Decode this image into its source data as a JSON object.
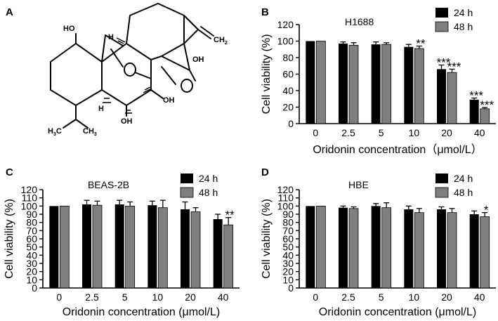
{
  "panels": {
    "A": {
      "letter": "A"
    }
  },
  "structure": {
    "labels": {
      "oh1": "HO",
      "h1": "H",
      "h2": "H",
      "o_ring": "O",
      "oh2": "OH",
      "o_ketone": "O",
      "oh3": "OH",
      "oh4": "OH",
      "ch2": "CH",
      "ch2_sub": "2",
      "h3c": "H",
      "h3c_sub": "3",
      "h3c_c": "C",
      "ch3": "CH",
      "ch3_sub": "3"
    }
  },
  "colors": {
    "series_24h": "#000000",
    "series_48h": "#7f7f7f"
  },
  "chart_data": [
    {
      "id": "B",
      "letter": "B",
      "type": "bar",
      "title": "H1688",
      "xlabel": "Oridonin concentration（μmol/L）",
      "ylabel": "Cell viability (%)",
      "categories": [
        "0",
        "2.5",
        "5",
        "10",
        "20",
        "40"
      ],
      "ylim": [
        0,
        120
      ],
      "yticks": [
        0,
        20,
        40,
        60,
        80,
        100,
        120
      ],
      "legend_position": "top-right",
      "series": [
        {
          "name": "24 h",
          "values": [
            100,
            97,
            96,
            93,
            66,
            29
          ],
          "errors": [
            0,
            2,
            3,
            3,
            5,
            2
          ],
          "stars": [
            "",
            "",
            "",
            "",
            "***",
            "***"
          ]
        },
        {
          "name": "48 h",
          "values": [
            100,
            95,
            96,
            91,
            62,
            18
          ],
          "errors": [
            0,
            3,
            2,
            3,
            4,
            1.5
          ],
          "stars": [
            "",
            "",
            "",
            "**",
            "***",
            "***"
          ]
        }
      ]
    },
    {
      "id": "C",
      "letter": "C",
      "type": "bar",
      "title": "BEAS-2B",
      "xlabel": "Oridonin concentration (μmol/L)",
      "ylabel": "Cell viability (%)",
      "categories": [
        "0",
        "2.5",
        "5",
        "10",
        "20",
        "40"
      ],
      "ylim": [
        0,
        120
      ],
      "yticks": [
        0,
        10,
        20,
        30,
        40,
        50,
        60,
        70,
        80,
        90,
        100,
        110,
        120
      ],
      "legend_position": "top-right",
      "series": [
        {
          "name": "24 h",
          "values": [
            100,
            102,
            102,
            101,
            96,
            84
          ],
          "errors": [
            0,
            5,
            5,
            5,
            9,
            6
          ],
          "stars": [
            "",
            "",
            "",
            "",
            "",
            ""
          ]
        },
        {
          "name": "48 h",
          "values": [
            100,
            101,
            100,
            98,
            93,
            77
          ],
          "errors": [
            0,
            5,
            5,
            9,
            5,
            9
          ],
          "stars": [
            "",
            "",
            "",
            "",
            "",
            "**"
          ]
        }
      ]
    },
    {
      "id": "D",
      "letter": "D",
      "type": "bar",
      "title": "HBE",
      "xlabel": "Oridonin concentration (μmol/L)",
      "ylabel": "Cell viability (%)",
      "categories": [
        "0",
        "2.5",
        "5",
        "10",
        "20",
        "40"
      ],
      "ylim": [
        0,
        120
      ],
      "yticks": [
        0,
        10,
        20,
        30,
        40,
        50,
        60,
        70,
        80,
        90,
        100,
        110,
        120
      ],
      "legend_position": "top-right",
      "series": [
        {
          "name": "24 h",
          "values": [
            100,
            98,
            100,
            96,
            96,
            90
          ],
          "errors": [
            0,
            2,
            3,
            4,
            3,
            4
          ],
          "stars": [
            "",
            "",
            "",
            "",
            "",
            ""
          ]
        },
        {
          "name": "48 h",
          "values": [
            100,
            97,
            98,
            92,
            92,
            87
          ],
          "errors": [
            0,
            2,
            6,
            5,
            5,
            5
          ],
          "stars": [
            "",
            "",
            "",
            "",
            "",
            "*"
          ]
        }
      ]
    }
  ]
}
